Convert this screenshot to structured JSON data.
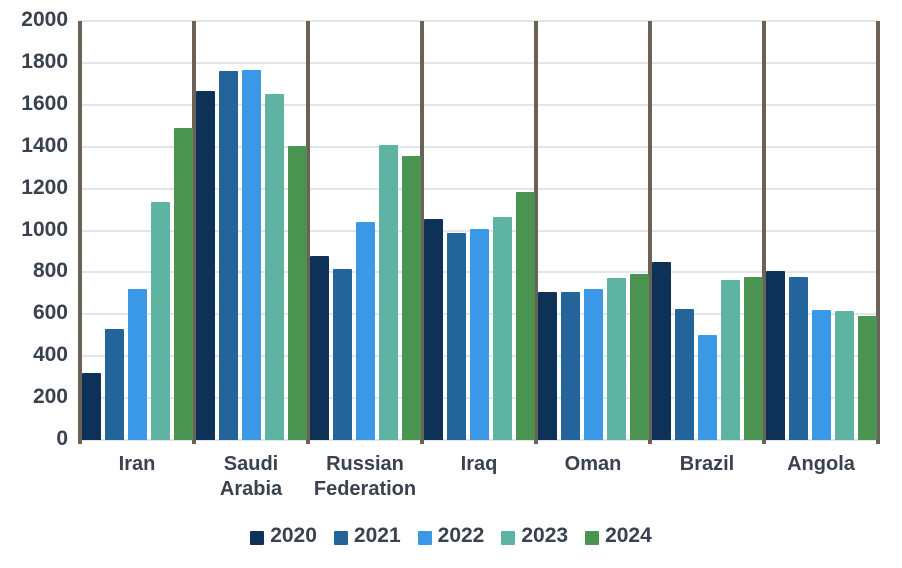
{
  "chart_data": {
    "type": "bar",
    "title": "",
    "xlabel": "",
    "ylabel": "",
    "categories": [
      "Iran",
      "Saudi Arabia",
      "Russian Federation",
      "Iraq",
      "Oman",
      "Brazil",
      "Angola"
    ],
    "categories_display": [
      [
        "Iran"
      ],
      [
        "Saudi",
        "Arabia"
      ],
      [
        "Russian",
        "Federation"
      ],
      [
        "Iraq"
      ],
      [
        "Oman"
      ],
      [
        "Brazil"
      ],
      [
        "Angola"
      ]
    ],
    "series": [
      {
        "name": "2020",
        "color": "#0e3257",
        "values": [
          320,
          1665,
          880,
          1055,
          705,
          850,
          805
        ]
      },
      {
        "name": "2021",
        "color": "#23659a",
        "values": [
          530,
          1760,
          815,
          990,
          705,
          625,
          780
        ]
      },
      {
        "name": "2022",
        "color": "#3b98e6",
        "values": [
          720,
          1765,
          1040,
          1005,
          720,
          500,
          620
        ]
      },
      {
        "name": "2023",
        "color": "#5fb3a3",
        "values": [
          1135,
          1650,
          1410,
          1065,
          775,
          765,
          615
        ]
      },
      {
        "name": "2024",
        "color": "#4a9350",
        "values": [
          1490,
          1405,
          1355,
          1185,
          790,
          780,
          590
        ]
      }
    ],
    "ylim": [
      0,
      2000
    ],
    "ytick_step": 200,
    "ytick_labels": [
      "0",
      "200",
      "400",
      "600",
      "800",
      "1000",
      "1200",
      "1400",
      "1600",
      "1800",
      "2000"
    ],
    "grid": true,
    "legend_position": "bottom"
  },
  "style": {
    "grid_color": "#e2e6ea",
    "separator_color": "#6b6156",
    "text_color": "#39424e",
    "background_color": "#ffffff"
  }
}
